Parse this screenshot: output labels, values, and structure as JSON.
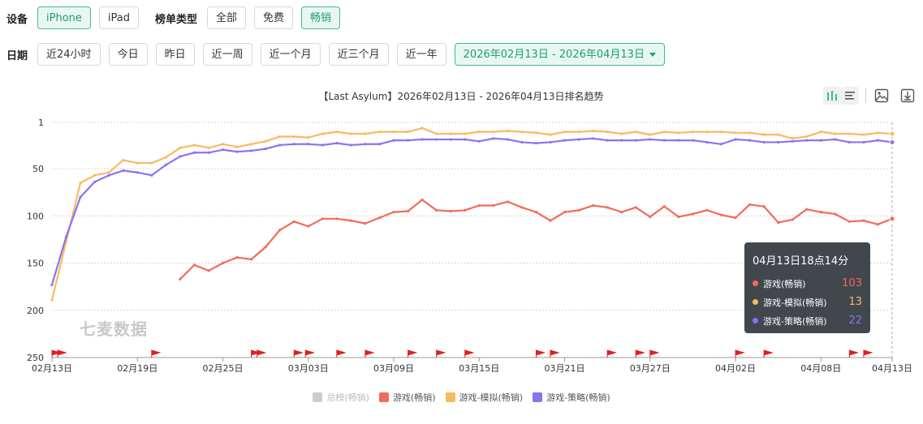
{
  "filters": {
    "device_label": "设备",
    "devices": [
      "iPhone",
      "iPad"
    ],
    "chart_type_label": "榜单类型",
    "chart_types": [
      "全部",
      "免费",
      "畅销"
    ],
    "date_label": "日期",
    "date_presets": [
      "近24小时",
      "今日",
      "昨日",
      "近一周",
      "近一个月",
      "近三个月",
      "近一年"
    ],
    "date_range": "2026年02月13日 - 2026年04月13日"
  },
  "toolbar": {
    "icons": [
      "bar-chart-icon",
      "list-icon",
      "image-icon",
      "download-icon"
    ]
  },
  "watermark": "七麦数据",
  "tooltip": {
    "title": "04月13日18点14分",
    "rows": [
      {
        "name": "游戏(畅销)",
        "value": "103",
        "color": "#f26b5b"
      },
      {
        "name": "游戏-模拟(畅销)",
        "value": "13",
        "color": "#f9b962"
      },
      {
        "name": "游戏-策略(畅销)",
        "value": "22",
        "color": "#8a73f2"
      }
    ]
  },
  "chart_data": {
    "type": "line",
    "title": "【Last Asylum】2026年02月13日 - 2026年04月13日排名趋势",
    "x_ticks": [
      "02月13日",
      "02月19日",
      "02月25日",
      "03月03日",
      "03月09日",
      "03月15日",
      "03月21日",
      "03月27日",
      "04月02日",
      "04月08日",
      "04月13日"
    ],
    "y_ticks": [
      1,
      50,
      100,
      150,
      200,
      250
    ],
    "ylim": [
      1,
      250
    ],
    "y_inverted": true,
    "x_start_day": 0,
    "x_end_day": 59,
    "grid": true,
    "legend_position": "bottom",
    "legend": [
      {
        "name": "总榜(畅销)",
        "color": "#cccccc",
        "hidden": true
      },
      {
        "name": "游戏(畅销)",
        "color": "#f26b5b"
      },
      {
        "name": "游戏-模拟(畅销)",
        "color": "#f9b962"
      },
      {
        "name": "游戏-策略(畅销)",
        "color": "#8a73f2"
      }
    ],
    "flag_color": "#e02020",
    "flags": [
      0,
      0.4,
      7,
      14,
      14.4,
      17,
      17.8,
      20,
      22,
      25,
      27,
      29,
      34,
      35,
      39,
      41,
      42,
      48,
      50,
      56,
      57
    ],
    "series": [
      {
        "name": "游戏(畅销)",
        "color": "#f26b5b",
        "start_day": 9,
        "values": [
          167,
          152,
          158,
          150,
          144,
          146,
          133,
          115,
          106,
          111,
          103,
          103,
          105,
          108,
          102,
          96,
          95,
          83,
          94,
          95,
          94,
          89,
          89,
          85,
          91,
          96,
          105,
          96,
          94,
          89,
          91,
          96,
          91,
          101,
          90,
          101,
          98,
          94,
          99,
          102,
          88,
          90,
          107,
          104,
          93,
          96,
          98,
          106,
          105,
          109,
          103
        ]
      },
      {
        "name": "游戏-模拟(畅销)",
        "color": "#f9b962",
        "start_day": 0,
        "values": [
          189,
          127,
          65,
          57,
          54,
          41,
          44,
          44,
          38,
          28,
          25,
          28,
          24,
          27,
          24,
          21,
          16,
          16,
          17,
          13,
          11,
          13,
          13,
          11,
          11,
          11,
          7,
          13,
          13,
          13,
          11,
          11,
          10,
          11,
          12,
          14,
          11,
          11,
          10,
          11,
          13,
          11,
          14,
          11,
          12,
          11,
          11,
          11,
          12,
          12,
          14,
          14,
          18,
          16,
          11,
          13,
          13,
          14,
          12,
          13
        ]
      },
      {
        "name": "游戏-策略(畅销)",
        "color": "#8a73f2",
        "start_day": 0,
        "values": [
          173,
          122,
          80,
          64,
          57,
          52,
          54,
          57,
          46,
          37,
          33,
          33,
          30,
          32,
          31,
          29,
          25,
          24,
          24,
          25,
          23,
          25,
          24,
          24,
          20,
          20,
          19,
          19,
          19,
          19,
          21,
          18,
          19,
          22,
          23,
          22,
          20,
          19,
          18,
          20,
          20,
          20,
          19,
          20,
          20,
          20,
          22,
          24,
          19,
          20,
          22,
          22,
          21,
          20,
          20,
          19,
          22,
          22,
          20,
          22
        ]
      }
    ]
  }
}
